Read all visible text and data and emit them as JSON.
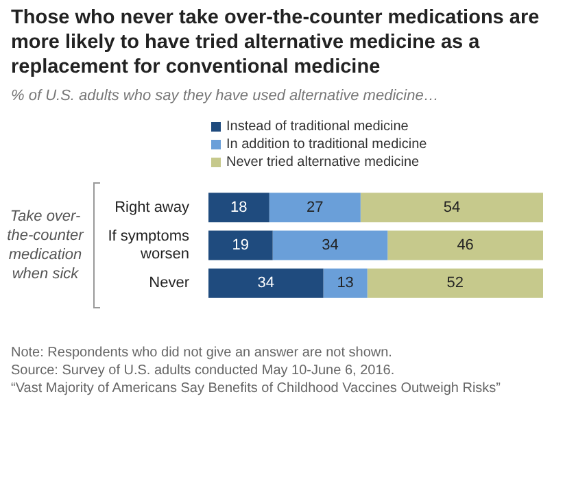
{
  "chart_data": {
    "type": "bar",
    "orientation": "horizontal",
    "stacked": true,
    "data_labels": true,
    "legend": "top",
    "tick_labels": "y",
    "title": "Those who never take over-the-counter  medications are more likely to have tried alternative medicine as a replacement for conventional  medicine",
    "subtitle": "% of U.S. adults who say they have used alternative medicine…",
    "ylabel": "Take over-the-counter medication when sick",
    "categories": [
      "Right away",
      "If symptoms worsen",
      "Never"
    ],
    "series": [
      {
        "name": "Instead of traditional medicine",
        "color": "#1f4b7e",
        "values": [
          18,
          19,
          34
        ]
      },
      {
        "name": "In addition to traditional medicine",
        "color": "#6a9fd9",
        "values": [
          27,
          34,
          13
        ]
      },
      {
        "name": "Never tried alternative medicine",
        "color": "#c6c98c",
        "values": [
          54,
          46,
          52
        ]
      }
    ],
    "annotations": [
      "Note: Respondents who did not give an answer are not shown.",
      "Source: Survey of U.S. adults conducted May 10-June 6, 2016.",
      "“Vast Majority of Americans Say Benefits of Childhood Vaccines Outweigh Risks”"
    ]
  }
}
